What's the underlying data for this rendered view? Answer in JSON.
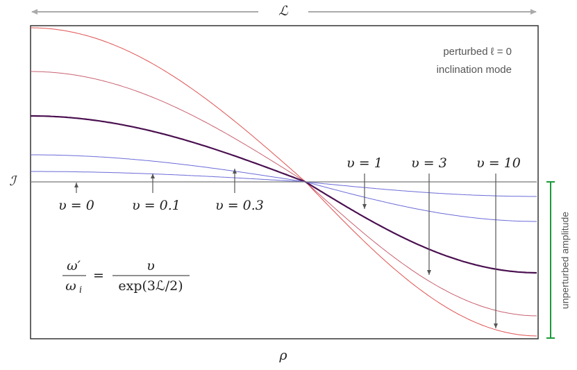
{
  "top_label": "ℒ",
  "left_label": "ℐ",
  "bottom_label": "ρ",
  "note": {
    "line1": "perturbed ℓ = 0",
    "line2": "inclination mode"
  },
  "curve_labels": [
    "υ = 0",
    "υ = 0.1",
    "υ = 0.3",
    "υ = 1",
    "υ = 3",
    "υ = 10"
  ],
  "formula": {
    "lhs_num": "ω′",
    "lhs_den": "ω",
    "lhs_den_sub": "i",
    "equals": "=",
    "rhs_num": "υ",
    "rhs_den": "exp(3ℒ/2)"
  },
  "side_label": "unperturbed amplitude"
}
